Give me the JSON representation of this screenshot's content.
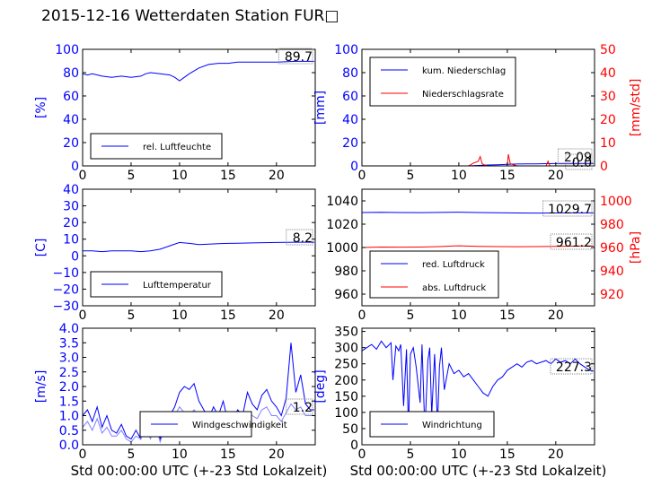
{
  "title": "2015-12-16 Wetterdaten Station FUR□",
  "colors": {
    "blue": "#0000ff",
    "red": "#ff0000",
    "lightblue": "#8080ff"
  },
  "chart_data": [
    {
      "type": "line",
      "xlabel": "",
      "ylabel": "[%]",
      "xlim": [
        0,
        24
      ],
      "ylim": [
        0,
        100
      ],
      "xticks": [
        "0",
        "5",
        "10",
        "15",
        "20"
      ],
      "yticks": [
        "0",
        "20",
        "40",
        "60",
        "80",
        "100"
      ],
      "legend": [
        "rel. Luftfeuchte"
      ],
      "legend_position": "lower-left",
      "annotation": "89.7",
      "series": [
        {
          "name": "rel. Luftfeuchte",
          "color": "#0000ff",
          "x": [
            0,
            0.5,
            1,
            2,
            3,
            4,
            5,
            6,
            6.5,
            7,
            8,
            9,
            9.5,
            10,
            10.5,
            11,
            12,
            13,
            14,
            15,
            16,
            18,
            20,
            22,
            23.9
          ],
          "y": [
            79,
            78,
            79,
            77,
            76,
            77,
            76,
            77,
            79,
            80,
            79,
            78,
            76,
            73,
            76,
            79,
            84,
            87,
            88,
            88,
            89,
            89,
            89,
            89.7,
            89.7
          ]
        }
      ]
    },
    {
      "type": "line",
      "xlabel": "",
      "ylabel": "[mm]",
      "ylabel_right": "[mm/std]",
      "xlim": [
        0,
        24
      ],
      "ylim": [
        0,
        100
      ],
      "ylim_right": [
        0,
        50
      ],
      "xticks": [
        "0",
        "5",
        "10",
        "15",
        "20"
      ],
      "yticks": [
        "0",
        "20",
        "40",
        "60",
        "80",
        "100"
      ],
      "yticks_right": [
        "0",
        "10",
        "20",
        "30",
        "40",
        "50"
      ],
      "legend": [
        "kum. Niederschlag",
        "Niederschlagsrate"
      ],
      "legend_position": "upper-left",
      "annotations": [
        "2.09",
        "0.0"
      ],
      "series": [
        {
          "name": "kum. Niederschlag",
          "color": "#0000ff",
          "axis": "left",
          "x": [
            0,
            11,
            12,
            13,
            14,
            15,
            16,
            17,
            18,
            19,
            20,
            21,
            22,
            23.9
          ],
          "y": [
            0,
            0,
            0.4,
            0.8,
            1.0,
            1.4,
            1.6,
            1.7,
            1.8,
            1.9,
            2.0,
            2.05,
            2.09,
            2.09
          ]
        },
        {
          "name": "Niederschlagsrate",
          "color": "#ff0000",
          "axis": "right",
          "x": [
            0,
            11,
            11.5,
            12,
            12.2,
            12.4,
            12.6,
            13,
            14,
            15,
            15.1,
            15.3,
            15.6,
            16,
            17,
            18,
            19,
            19.2,
            19.4,
            20,
            21,
            22,
            23.9
          ],
          "y": [
            0,
            0,
            1.2,
            2,
            4,
            1,
            0.5,
            0,
            0,
            0,
            5,
            1,
            0.5,
            0,
            0,
            0,
            0,
            2,
            0,
            0,
            0,
            0,
            0
          ]
        }
      ]
    },
    {
      "type": "line",
      "xlabel": "",
      "ylabel": "[C]",
      "xlim": [
        0,
        24
      ],
      "ylim": [
        -30,
        40
      ],
      "xticks": [
        "0",
        "5",
        "10",
        "15",
        "20"
      ],
      "yticks": [
        "−30",
        "−20",
        "−10",
        "0",
        "10",
        "20",
        "30",
        "40"
      ],
      "legend": [
        "Lufttemperatur"
      ],
      "legend_position": "lower-left",
      "annotation": "8.2",
      "series": [
        {
          "name": "Lufttemperatur",
          "color": "#0000ff",
          "x": [
            0,
            1,
            2,
            3,
            4,
            5,
            6,
            7,
            8,
            9,
            10,
            11,
            12,
            13,
            14,
            15,
            16,
            18,
            20,
            22,
            23.9
          ],
          "y": [
            3,
            3,
            2.5,
            3,
            3,
            3,
            2.5,
            3,
            4,
            6,
            8,
            7.5,
            6.8,
            7,
            7.3,
            7.5,
            7.6,
            7.8,
            8,
            8.2,
            8.2
          ]
        }
      ]
    },
    {
      "type": "line",
      "xlabel": "",
      "ylabel": "",
      "ylabel_right": "[hPa]",
      "xlim": [
        0,
        24
      ],
      "ylim": [
        950,
        1050
      ],
      "ylim_right": [
        910,
        1010
      ],
      "xticks": [
        "0",
        "5",
        "10",
        "15",
        "20"
      ],
      "yticks": [
        "960",
        "980",
        "1000",
        "1020",
        "1040"
      ],
      "yticks_right": [
        "920",
        "940",
        "960",
        "980",
        "1000"
      ],
      "legend": [
        "red. Luftdruck",
        "abs. Luftdruck"
      ],
      "legend_position": "lower-left",
      "annotations": [
        "1029.7",
        "961.2"
      ],
      "series": [
        {
          "name": "red. Luftdruck",
          "color": "#0000ff",
          "axis": "left",
          "x": [
            0,
            2,
            4,
            6,
            8,
            10,
            12,
            14,
            16,
            18,
            20,
            22,
            23.9
          ],
          "y": [
            1030,
            1030.2,
            1030,
            1029.9,
            1030.1,
            1030.3,
            1030,
            1029.8,
            1029.6,
            1029.5,
            1029.6,
            1029.7,
            1029.7
          ]
        },
        {
          "name": "abs. Luftdruck",
          "color": "#ff0000",
          "axis": "right",
          "x": [
            0,
            2,
            4,
            6,
            8,
            10,
            12,
            14,
            16,
            18,
            20,
            22,
            23.9
          ],
          "y": [
            960,
            960.4,
            960.3,
            960.4,
            960.8,
            961.5,
            961,
            960.8,
            960.7,
            960.8,
            961,
            961.2,
            961.2
          ]
        }
      ]
    },
    {
      "type": "line",
      "xlabel": "Std 00:00:00 UTC (+-23 Std Lokalzeit)",
      "ylabel": "[m/s]",
      "xlim": [
        0,
        24
      ],
      "ylim": [
        0,
        4
      ],
      "xticks": [
        "0",
        "5",
        "10",
        "15",
        "20"
      ],
      "yticks": [
        "0.0",
        "0.5",
        "1.0",
        "1.5",
        "2.0",
        "2.5",
        "3.0",
        "3.5",
        "4.0"
      ],
      "legend": [
        "Windgeschwindigkeit"
      ],
      "legend_position": "lower-center",
      "annotation": "1.2",
      "series": [
        {
          "name": "Windgeschwindigkeit",
          "color": "#0000ff",
          "x": [
            0,
            0.5,
            1,
            1.5,
            2,
            2.5,
            3,
            3.5,
            4,
            4.5,
            5,
            5.5,
            6,
            6.5,
            7,
            7.5,
            8,
            8.5,
            9,
            9.5,
            10,
            10.5,
            11,
            11.5,
            12,
            12.5,
            13,
            13.5,
            14,
            14.5,
            15,
            15.5,
            16,
            16.5,
            17,
            17.5,
            18,
            18.5,
            19,
            19.5,
            20,
            20.5,
            21,
            21.5,
            22,
            22.5,
            23,
            23.5,
            23.9
          ],
          "y": [
            1.0,
            1.2,
            0.8,
            1.3,
            0.6,
            1.0,
            0.5,
            0.4,
            0.7,
            0.3,
            0.2,
            0.5,
            0.2,
            0.8,
            0.3,
            0.9,
            0.2,
            0.7,
            1.0,
            1.3,
            1.8,
            2.0,
            1.9,
            2.1,
            1.5,
            1.2,
            0.9,
            1.3,
            1.0,
            1.5,
            0.8,
            0.9,
            1.2,
            1.0,
            1.8,
            1.4,
            1.2,
            1.7,
            1.9,
            1.5,
            1.3,
            1.0,
            1.6,
            3.5,
            1.8,
            2.4,
            1.4,
            1.2,
            1.2
          ]
        },
        {
          "name": "",
          "color": "#8080ff",
          "x": [
            0,
            0.5,
            1,
            1.5,
            2,
            2.5,
            3,
            3.5,
            4,
            4.5,
            5,
            5.5,
            6,
            6.5,
            7,
            7.5,
            8,
            8.5,
            9,
            9.5,
            10,
            10.5,
            11,
            11.5,
            12,
            12.5,
            13,
            13.5,
            14,
            14.5,
            15,
            15.5,
            16,
            16.5,
            17,
            17.5,
            18,
            18.5,
            19,
            19.5,
            20,
            20.5,
            21,
            21.5,
            22,
            22.5,
            23,
            23.5,
            23.9
          ],
          "y": [
            0.6,
            0.8,
            0.5,
            0.9,
            0.4,
            0.6,
            0.3,
            0.3,
            0.5,
            0.2,
            0.1,
            0.3,
            0.2,
            0.6,
            0.2,
            0.7,
            0.1,
            0.6,
            0.8,
            1.0,
            1.3,
            1.1,
            1.0,
            1.2,
            1.0,
            0.8,
            0.7,
            1.0,
            0.9,
            1.1,
            0.7,
            0.8,
            1.0,
            0.8,
            1.1,
            1.0,
            0.9,
            1.2,
            1.3,
            1.0,
            1.0,
            0.8,
            1.1,
            1.4,
            1.2,
            1.3,
            1.0,
            1.0,
            1.0
          ]
        }
      ]
    },
    {
      "type": "line",
      "xlabel": "Std 00:00:00 UTC (+-23 Std Lokalzeit)",
      "ylabel": "[deg]",
      "xlim": [
        0,
        24
      ],
      "ylim": [
        0,
        360
      ],
      "xticks": [
        "0",
        "5",
        "10",
        "15",
        "20"
      ],
      "yticks": [
        "0",
        "50",
        "100",
        "150",
        "200",
        "250",
        "300",
        "350"
      ],
      "legend": [
        "Windrichtung"
      ],
      "legend_position": "lower-left",
      "annotation": "227.3",
      "series": [
        {
          "name": "Windrichtung",
          "color": "#0000ff",
          "x": [
            0,
            0.5,
            1,
            1.5,
            2,
            2.5,
            3,
            3.2,
            3.5,
            3.8,
            4,
            4.3,
            4.6,
            4.8,
            5,
            5.3,
            5.6,
            6,
            6.2,
            6.5,
            6.8,
            7,
            7.2,
            7.5,
            7.8,
            8,
            8.2,
            8.5,
            9,
            9.5,
            10,
            10.5,
            11,
            11.5,
            12,
            12.5,
            13,
            13.5,
            14,
            14.5,
            15,
            15.5,
            16,
            16.5,
            17,
            17.5,
            18,
            18.5,
            19,
            19.5,
            20,
            20.5,
            21,
            21.5,
            22,
            22.5,
            23,
            23.5,
            23.9
          ],
          "y": [
            290,
            300,
            310,
            295,
            320,
            300,
            315,
            200,
            305,
            290,
            310,
            120,
            295,
            50,
            280,
            300,
            240,
            130,
            310,
            40,
            260,
            300,
            90,
            280,
            60,
            240,
            300,
            170,
            250,
            220,
            230,
            210,
            220,
            200,
            180,
            160,
            150,
            180,
            200,
            210,
            230,
            240,
            250,
            240,
            255,
            260,
            250,
            255,
            260,
            250,
            265,
            255,
            260,
            250,
            265,
            250,
            240,
            230,
            227
          ]
        }
      ]
    }
  ]
}
